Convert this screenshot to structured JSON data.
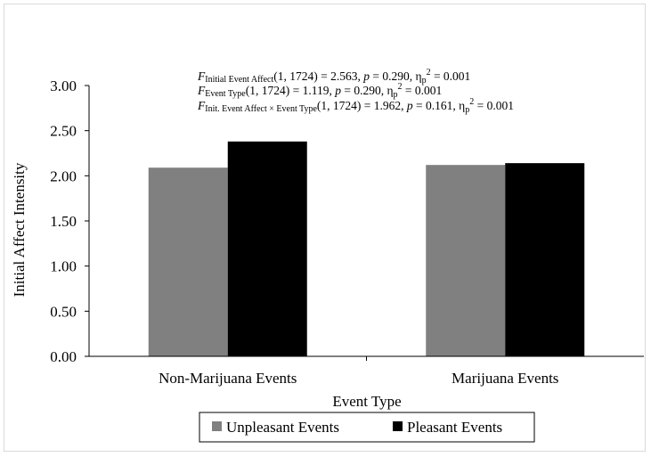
{
  "chart_data": {
    "type": "bar",
    "categories": [
      "Non-Marijuana Events",
      "Marijuana Events"
    ],
    "series": [
      {
        "name": "Unpleasant Events",
        "color": "#808080",
        "values": [
          2.09,
          2.12
        ]
      },
      {
        "name": "Pleasant Events",
        "color": "#000000",
        "values": [
          2.38,
          2.14
        ]
      }
    ],
    "xlabel": "Event Type",
    "ylabel": "Initial Affect Intensity",
    "ylim": [
      0,
      3
    ],
    "yticks": [
      "0.00",
      "0.50",
      "1.00",
      "1.50",
      "2.00",
      "2.50",
      "3.00"
    ],
    "grid": false,
    "legend_position": "bottom",
    "annotations": [
      {
        "stat": "F",
        "subscript": "Initial Event Affect",
        "df": "(1, 1724) = 2.563, ",
        "p_label": "p",
        "p_text": " = 0.290, η",
        "eta_sub": "p",
        "eta_sup": "2",
        "eta_value": " = 0.001"
      },
      {
        "stat": "F",
        "subscript": "Event Type",
        "df": "(1, 1724) = 1.119, ",
        "p_label": "p",
        "p_text": " = 0.290, η",
        "eta_sub": "p",
        "eta_sup": "2",
        "eta_value": " = 0.001"
      },
      {
        "stat": "F",
        "subscript": "Init. Event Affect × Event Type",
        "df": "(1, 1724) = 1.962, ",
        "p_label": "p",
        "p_text": " = 0.161, η",
        "eta_sub": "p",
        "eta_sup": "2",
        "eta_value": " = 0.001"
      }
    ]
  }
}
